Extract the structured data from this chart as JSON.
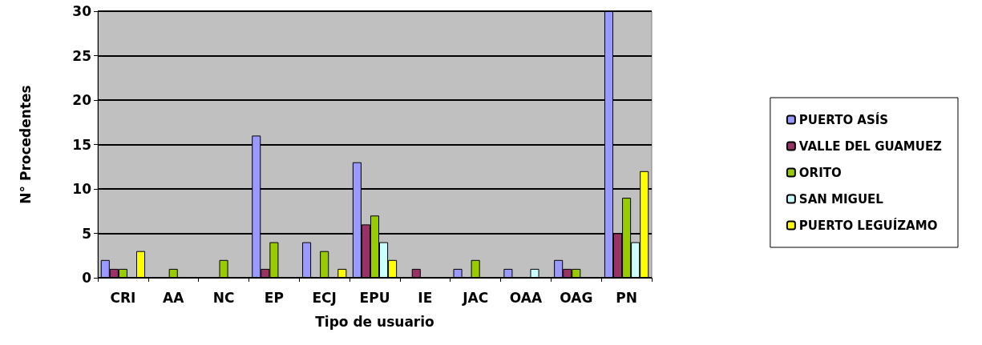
{
  "chart_data": {
    "type": "bar",
    "xlabel": "Tipo de usuario",
    "ylabel": "N° Procedentes",
    "categories": [
      "CRI",
      "AA",
      "NC",
      "EP",
      "ECJ",
      "EPU",
      "IE",
      "JAC",
      "OAA",
      "OAG",
      "PN"
    ],
    "series": [
      {
        "name": "PUERTO ASÍS",
        "color": "#9999ff",
        "values": [
          2,
          0,
          0,
          16,
          4,
          13,
          0,
          1,
          1,
          2,
          30
        ]
      },
      {
        "name": "VALLE DEL GUAMUEZ",
        "color": "#993366",
        "values": [
          1,
          0,
          0,
          1,
          0,
          6,
          1,
          0,
          0,
          1,
          5
        ]
      },
      {
        "name": "ORITO",
        "color": "#99cc00",
        "values": [
          1,
          1,
          2,
          4,
          3,
          7,
          0,
          2,
          0,
          1,
          9
        ]
      },
      {
        "name": "SAN MIGUEL",
        "color": "#ccffff",
        "values": [
          0,
          0,
          0,
          0,
          0,
          4,
          0,
          0,
          1,
          0,
          4
        ]
      },
      {
        "name": "PUERTO LEGUÍZAMO",
        "color": "#ffff00",
        "values": [
          3,
          0,
          0,
          0,
          1,
          2,
          0,
          0,
          0,
          0,
          12
        ]
      }
    ],
    "ylim": [
      0,
      30
    ],
    "yticks": [
      0,
      5,
      10,
      15,
      20,
      25,
      30
    ],
    "grid": "y",
    "legend": "right"
  }
}
